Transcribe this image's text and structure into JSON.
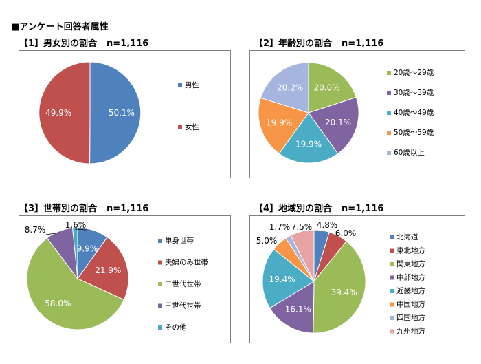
{
  "page": {
    "title": "■アンケート回答者属性"
  },
  "chart_data": [
    {
      "type": "pie",
      "title": "【1】男女別の割合",
      "n_label": "n=1,116",
      "categories": [
        "男性",
        "女性"
      ],
      "values": [
        50.1,
        49.9
      ],
      "labels": [
        "50.1%",
        "49.9%"
      ],
      "colors": [
        "#4F81BD",
        "#C0504D"
      ],
      "legend_position": "right"
    },
    {
      "type": "pie",
      "title": "【2】年齢別の割合",
      "n_label": "n=1,116",
      "categories": [
        "20歳～29歳",
        "30歳～39歳",
        "40歳～49歳",
        "50歳～59歳",
        "60歳以上"
      ],
      "values": [
        20.0,
        20.1,
        19.9,
        19.9,
        20.2
      ],
      "labels": [
        "20.0%",
        "20.1%",
        "19.9%",
        "19.9%",
        "20.2%"
      ],
      "colors": [
        "#9BBB59",
        "#8064A2",
        "#4BACC6",
        "#F79646",
        "#A5B5DE"
      ],
      "legend_position": "right"
    },
    {
      "type": "pie",
      "title": "【3】世帯別の割合",
      "n_label": "n=1,116",
      "categories": [
        "単身世帯",
        "夫婦のみ世帯",
        "二世代世帯",
        "三世代世帯",
        "その他"
      ],
      "values": [
        9.9,
        21.9,
        58.0,
        8.7,
        1.6
      ],
      "labels": [
        "9.9%",
        "21.9%",
        "58.0%",
        "8.7%",
        "1.6%"
      ],
      "colors": [
        "#4F81BD",
        "#C0504D",
        "#9BBB59",
        "#8064A2",
        "#4BACC6"
      ],
      "legend_position": "right"
    },
    {
      "type": "pie",
      "title": "【4】地域別の割合",
      "n_label": "n=1,116",
      "categories": [
        "北海道",
        "東北地方",
        "関東地方",
        "中部地方",
        "近畿地方",
        "中国地方",
        "四国地方",
        "九州地方"
      ],
      "values": [
        4.8,
        6.0,
        39.4,
        16.1,
        19.4,
        5.0,
        1.7,
        7.5
      ],
      "labels": [
        "4.8%",
        "6.0%",
        "39.4%",
        "16.1%",
        "19.4%",
        "5.0%",
        "1.7%",
        "7.5%"
      ],
      "colors": [
        "#4F81BD",
        "#C0504D",
        "#9BBB59",
        "#8064A2",
        "#4BACC6",
        "#F79646",
        "#A5B5DE",
        "#E6A3A2"
      ],
      "legend_position": "right"
    }
  ]
}
